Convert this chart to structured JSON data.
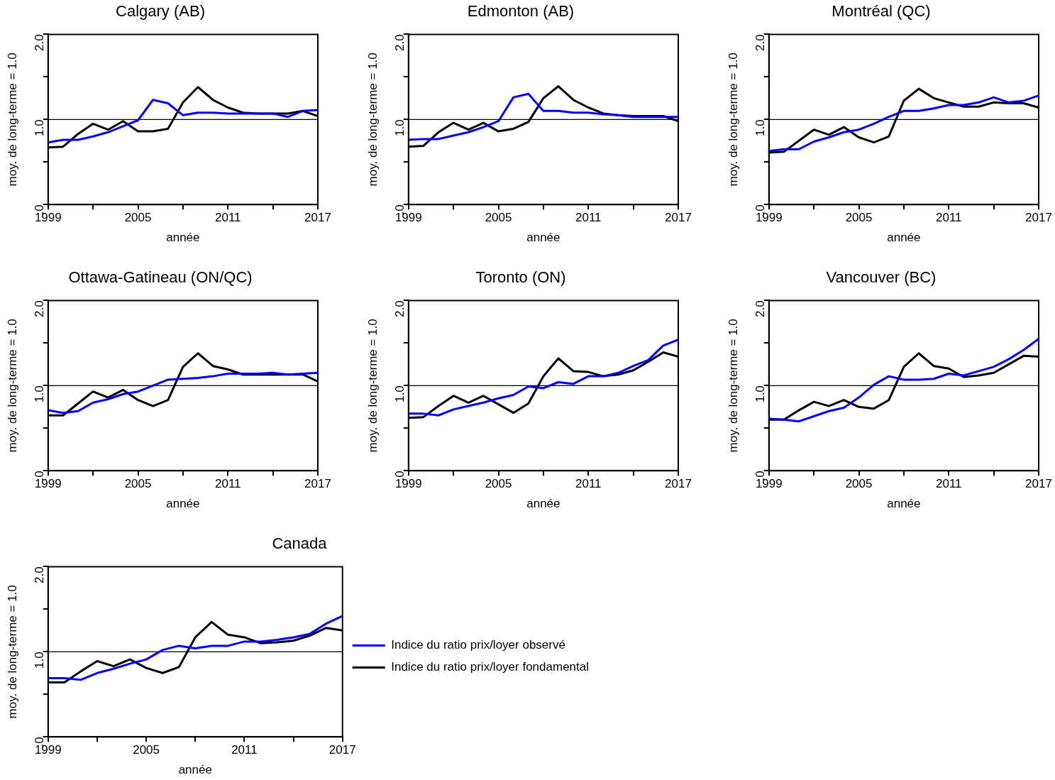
{
  "chart_data": [
    {
      "type": "line",
      "title": "Calgary (AB)",
      "xlabel": "année",
      "ylabel": "moy. de long-terme = 1.0",
      "x": [
        1999,
        2000,
        2001,
        2002,
        2003,
        2004,
        2005,
        2006,
        2007,
        2008,
        2009,
        2010,
        2011,
        2012,
        2013,
        2014,
        2015,
        2016,
        2017
      ],
      "xlim": [
        1999,
        2017
      ],
      "xticks": [
        1999,
        {
          "value": 2002,
          "label": null
        },
        2005,
        {
          "value": 2008,
          "label": null
        },
        2011,
        {
          "value": 2014,
          "label": null
        },
        2017
      ],
      "ylim": [
        0,
        2
      ],
      "yticks": [
        {
          "value": 0,
          "label": ".0"
        },
        {
          "value": 0.5,
          "label": null
        },
        {
          "value": 1,
          "label": "1.0"
        },
        {
          "value": 1.5,
          "label": null
        },
        {
          "value": 2,
          "label": "2.0"
        }
      ],
      "grid": false,
      "legend": false,
      "ref_lines": [
        {
          "axis": "y",
          "value": 1,
          "color": "#000000"
        }
      ],
      "series": [
        {
          "color": "#0000ff",
          "values": [
            0.73,
            0.76,
            0.76,
            0.8,
            0.85,
            0.92,
            0.99,
            1.23,
            1.19,
            1.05,
            1.08,
            1.08,
            1.07,
            1.07,
            1.07,
            1.07,
            1.03,
            1.1,
            1.11
          ]
        },
        {
          "color": "#000000",
          "values": [
            0.67,
            0.68,
            0.83,
            0.95,
            0.88,
            0.98,
            0.86,
            0.86,
            0.89,
            1.2,
            1.38,
            1.23,
            1.14,
            1.08,
            1.07,
            1.07,
            1.07,
            1.1,
            1.04
          ]
        }
      ]
    },
    {
      "type": "line",
      "title": "Edmonton (AB)",
      "xlabel": "année",
      "ylabel": "moy. de long-terme = 1.0",
      "x": [
        1999,
        2000,
        2001,
        2002,
        2003,
        2004,
        2005,
        2006,
        2007,
        2008,
        2009,
        2010,
        2011,
        2012,
        2013,
        2014,
        2015,
        2016,
        2017
      ],
      "xlim": [
        1999,
        2017
      ],
      "xticks": [
        1999,
        {
          "value": 2002,
          "label": null
        },
        2005,
        {
          "value": 2008,
          "label": null
        },
        2011,
        {
          "value": 2014,
          "label": null
        },
        2017
      ],
      "ylim": [
        0,
        2
      ],
      "yticks": [
        {
          "value": 0,
          "label": ".0"
        },
        {
          "value": 0.5,
          "label": null
        },
        {
          "value": 1,
          "label": "1.0"
        },
        {
          "value": 1.5,
          "label": null
        },
        {
          "value": 2,
          "label": "2.0"
        }
      ],
      "grid": false,
      "legend": false,
      "ref_lines": [
        {
          "axis": "y",
          "value": 1,
          "color": "#000000"
        }
      ],
      "series": [
        {
          "color": "#0000ff",
          "values": [
            0.76,
            0.77,
            0.77,
            0.81,
            0.85,
            0.91,
            0.98,
            1.26,
            1.3,
            1.1,
            1.1,
            1.08,
            1.08,
            1.06,
            1.05,
            1.03,
            1.03,
            1.03,
            1.03
          ]
        },
        {
          "color": "#000000",
          "values": [
            0.68,
            0.69,
            0.85,
            0.96,
            0.88,
            0.96,
            0.86,
            0.89,
            0.97,
            1.25,
            1.39,
            1.23,
            1.14,
            1.07,
            1.05,
            1.04,
            1.04,
            1.04,
            0.98
          ]
        }
      ]
    },
    {
      "type": "line",
      "title": "Montréal (QC)",
      "xlabel": "année",
      "ylabel": "moy. de long-terme = 1.0",
      "x": [
        1999,
        2000,
        2001,
        2002,
        2003,
        2004,
        2005,
        2006,
        2007,
        2008,
        2009,
        2010,
        2011,
        2012,
        2013,
        2014,
        2015,
        2016,
        2017
      ],
      "xlim": [
        1999,
        2017
      ],
      "xticks": [
        1999,
        {
          "value": 2002,
          "label": null
        },
        2005,
        {
          "value": 2008,
          "label": null
        },
        2011,
        {
          "value": 2014,
          "label": null
        },
        2017
      ],
      "ylim": [
        0,
        2
      ],
      "yticks": [
        {
          "value": 0,
          "label": ".0"
        },
        {
          "value": 0.5,
          "label": null
        },
        {
          "value": 1,
          "label": "1.0"
        },
        {
          "value": 1.5,
          "label": null
        },
        {
          "value": 2,
          "label": "2.0"
        }
      ],
      "grid": false,
      "legend": false,
      "ref_lines": [
        {
          "axis": "y",
          "value": 1,
          "color": "#000000"
        }
      ],
      "series": [
        {
          "color": "#0000ff",
          "values": [
            0.63,
            0.65,
            0.65,
            0.74,
            0.79,
            0.85,
            0.88,
            0.95,
            1.03,
            1.1,
            1.1,
            1.13,
            1.17,
            1.17,
            1.2,
            1.26,
            1.2,
            1.22,
            1.28
          ]
        },
        {
          "color": "#000000",
          "values": [
            0.61,
            0.62,
            0.75,
            0.88,
            0.82,
            0.91,
            0.79,
            0.73,
            0.8,
            1.22,
            1.36,
            1.25,
            1.2,
            1.15,
            1.15,
            1.2,
            1.19,
            1.19,
            1.14
          ]
        }
      ]
    },
    {
      "type": "line",
      "title": "Ottawa-Gatineau (ON/QC)",
      "xlabel": "année",
      "ylabel": "moy. de long-terme = 1.0",
      "x": [
        1999,
        2000,
        2001,
        2002,
        2003,
        2004,
        2005,
        2006,
        2007,
        2008,
        2009,
        2010,
        2011,
        2012,
        2013,
        2014,
        2015,
        2016,
        2017
      ],
      "xlim": [
        1999,
        2017
      ],
      "xticks": [
        1999,
        {
          "value": 2002,
          "label": null
        },
        2005,
        {
          "value": 2008,
          "label": null
        },
        2011,
        {
          "value": 2014,
          "label": null
        },
        2017
      ],
      "ylim": [
        0,
        2
      ],
      "yticks": [
        {
          "value": 0,
          "label": ".0"
        },
        {
          "value": 0.5,
          "label": null
        },
        {
          "value": 1,
          "label": "1.0"
        },
        {
          "value": 1.5,
          "label": null
        },
        {
          "value": 2,
          "label": "2.0"
        }
      ],
      "grid": false,
      "legend": false,
      "ref_lines": [
        {
          "axis": "y",
          "value": 1,
          "color": "#000000"
        }
      ],
      "series": [
        {
          "color": "#0000ff",
          "values": [
            0.71,
            0.68,
            0.7,
            0.8,
            0.84,
            0.9,
            0.93,
            1.0,
            1.07,
            1.08,
            1.09,
            1.11,
            1.14,
            1.14,
            1.14,
            1.15,
            1.13,
            1.14,
            1.15
          ]
        },
        {
          "color": "#000000",
          "values": [
            0.65,
            0.65,
            0.79,
            0.93,
            0.86,
            0.95,
            0.83,
            0.76,
            0.83,
            1.22,
            1.38,
            1.23,
            1.19,
            1.13,
            1.13,
            1.13,
            1.13,
            1.13,
            1.05
          ]
        }
      ]
    },
    {
      "type": "line",
      "title": "Toronto (ON)",
      "xlabel": "année",
      "ylabel": "moy. de long-terme = 1.0",
      "x": [
        1999,
        2000,
        2001,
        2002,
        2003,
        2004,
        2005,
        2006,
        2007,
        2008,
        2009,
        2010,
        2011,
        2012,
        2013,
        2014,
        2015,
        2016,
        2017
      ],
      "xlim": [
        1999,
        2017
      ],
      "xticks": [
        1999,
        {
          "value": 2002,
          "label": null
        },
        2005,
        {
          "value": 2008,
          "label": null
        },
        2011,
        {
          "value": 2014,
          "label": null
        },
        2017
      ],
      "ylim": [
        0,
        2
      ],
      "yticks": [
        {
          "value": 0,
          "label": ".0"
        },
        {
          "value": 0.5,
          "label": null
        },
        {
          "value": 1,
          "label": "1.0"
        },
        {
          "value": 1.5,
          "label": null
        },
        {
          "value": 2,
          "label": "2.0"
        }
      ],
      "grid": false,
      "legend": false,
      "ref_lines": [
        {
          "axis": "y",
          "value": 1,
          "color": "#000000"
        }
      ],
      "series": [
        {
          "color": "#0000ff",
          "values": [
            0.67,
            0.67,
            0.65,
            0.72,
            0.76,
            0.8,
            0.85,
            0.89,
            0.99,
            0.97,
            1.04,
            1.02,
            1.11,
            1.11,
            1.15,
            1.23,
            1.3,
            1.47,
            1.54
          ]
        },
        {
          "color": "#000000",
          "values": [
            0.62,
            0.63,
            0.76,
            0.88,
            0.8,
            0.88,
            0.78,
            0.68,
            0.79,
            1.11,
            1.32,
            1.17,
            1.16,
            1.11,
            1.13,
            1.18,
            1.28,
            1.39,
            1.34
          ]
        }
      ]
    },
    {
      "type": "line",
      "title": "Vancouver (BC)",
      "xlabel": "année",
      "ylabel": "moy. de long-terme = 1.0",
      "x": [
        1999,
        2000,
        2001,
        2002,
        2003,
        2004,
        2005,
        2006,
        2007,
        2008,
        2009,
        2010,
        2011,
        2012,
        2013,
        2014,
        2015,
        2016,
        2017
      ],
      "xlim": [
        1999,
        2017
      ],
      "xticks": [
        1999,
        {
          "value": 2002,
          "label": null
        },
        2005,
        {
          "value": 2008,
          "label": null
        },
        2011,
        {
          "value": 2014,
          "label": null
        },
        2017
      ],
      "ylim": [
        0,
        2
      ],
      "yticks": [
        {
          "value": 0,
          "label": ".0"
        },
        {
          "value": 0.5,
          "label": null
        },
        {
          "value": 1,
          "label": "1.0"
        },
        {
          "value": 1.5,
          "label": null
        },
        {
          "value": 2,
          "label": "2.0"
        }
      ],
      "grid": false,
      "legend": false,
      "ref_lines": [
        {
          "axis": "y",
          "value": 1,
          "color": "#000000"
        }
      ],
      "series": [
        {
          "color": "#0000ff",
          "values": [
            0.61,
            0.6,
            0.58,
            0.64,
            0.7,
            0.74,
            0.86,
            1.01,
            1.11,
            1.07,
            1.07,
            1.08,
            1.14,
            1.12,
            1.17,
            1.22,
            1.31,
            1.42,
            1.55
          ]
        },
        {
          "color": "#000000",
          "values": [
            0.6,
            0.6,
            0.71,
            0.81,
            0.76,
            0.83,
            0.75,
            0.73,
            0.83,
            1.22,
            1.38,
            1.23,
            1.2,
            1.1,
            1.12,
            1.15,
            1.25,
            1.35,
            1.34
          ]
        }
      ]
    },
    {
      "type": "line",
      "title": "Canada",
      "xlabel": "année",
      "ylabel": "moy. de long-terme = 1.0",
      "x": [
        1999,
        2000,
        2001,
        2002,
        2003,
        2004,
        2005,
        2006,
        2007,
        2008,
        2009,
        2010,
        2011,
        2012,
        2013,
        2014,
        2015,
        2016,
        2017
      ],
      "xlim": [
        1999,
        2017
      ],
      "xticks": [
        1999,
        {
          "value": 2002,
          "label": null
        },
        2005,
        {
          "value": 2008,
          "label": null
        },
        2011,
        {
          "value": 2014,
          "label": null
        },
        2017
      ],
      "ylim": [
        0,
        2
      ],
      "yticks": [
        {
          "value": 0,
          "label": ".0"
        },
        {
          "value": 0.5,
          "label": null
        },
        {
          "value": 1,
          "label": "1.0"
        },
        {
          "value": 1.5,
          "label": null
        },
        {
          "value": 2,
          "label": "2.0"
        }
      ],
      "grid": false,
      "legend": "right",
      "ref_lines": [
        {
          "axis": "y",
          "value": 1,
          "color": "#000000"
        }
      ],
      "series": [
        {
          "name": "Indice du ratio prix/loyer observé",
          "color": "#0000ff",
          "values": [
            0.69,
            0.69,
            0.67,
            0.75,
            0.8,
            0.86,
            0.91,
            1.02,
            1.07,
            1.04,
            1.07,
            1.07,
            1.12,
            1.12,
            1.14,
            1.17,
            1.21,
            1.33,
            1.42
          ]
        },
        {
          "name": "Indice du ratio prix/loyer fondamental",
          "color": "#000000",
          "values": [
            0.64,
            0.64,
            0.77,
            0.89,
            0.83,
            0.91,
            0.81,
            0.75,
            0.82,
            1.17,
            1.35,
            1.2,
            1.17,
            1.1,
            1.11,
            1.13,
            1.19,
            1.28,
            1.25
          ]
        }
      ]
    }
  ]
}
